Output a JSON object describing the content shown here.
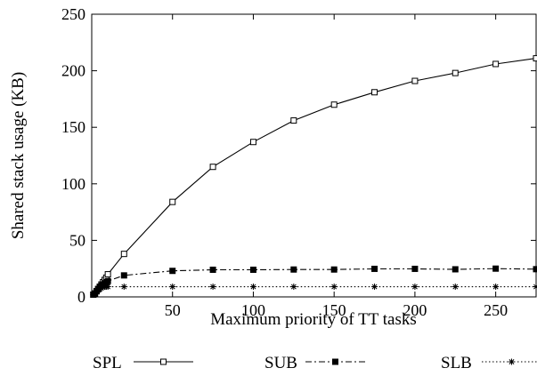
{
  "chart_data": {
    "type": "line",
    "title": "",
    "xlabel": "Maximum priority of TT tasks",
    "ylabel": "Shared stack usage (KB)",
    "xlim": [
      0,
      275
    ],
    "ylim": [
      0,
      250
    ],
    "x_ticks": [
      50,
      100,
      150,
      200,
      250
    ],
    "x_tick_labels": [
      "50",
      "100",
      "150",
      "200",
      "250"
    ],
    "y_ticks": [
      0,
      50,
      100,
      150,
      200,
      250
    ],
    "y_tick_labels": [
      "0",
      "50",
      "100",
      "150",
      "200",
      "250"
    ],
    "grid": false,
    "legend_position": "bottom",
    "series": [
      {
        "name": "SPL",
        "marker": "open-square",
        "line_style": "solid",
        "x": [
          1,
          2,
          3,
          4,
          5,
          6,
          7,
          8,
          9,
          10,
          20,
          50,
          75,
          100,
          125,
          150,
          175,
          200,
          225,
          250,
          275
        ],
        "y": [
          2,
          3,
          5,
          7,
          9,
          11,
          13,
          15,
          17,
          20,
          38,
          84,
          115,
          137,
          156,
          170,
          181,
          191,
          198,
          206,
          211
        ]
      },
      {
        "name": "SUB",
        "marker": "filled-square",
        "line_style": "dash-dot",
        "x": [
          1,
          2,
          3,
          4,
          5,
          6,
          7,
          8,
          9,
          10,
          20,
          50,
          75,
          100,
          125,
          150,
          175,
          200,
          225,
          250,
          275
        ],
        "y": [
          2,
          3,
          5,
          7,
          9,
          10,
          11,
          12,
          13,
          14,
          19,
          23,
          24,
          24,
          24.2,
          24.2,
          24.8,
          24.8,
          24.4,
          25,
          24.5
        ]
      },
      {
        "name": "SLB",
        "marker": "star",
        "line_style": "dotted",
        "x": [
          1,
          2,
          3,
          4,
          5,
          6,
          7,
          8,
          9,
          10,
          20,
          50,
          75,
          100,
          125,
          150,
          175,
          200,
          225,
          250,
          275
        ],
        "y": [
          2,
          3,
          4.5,
          6,
          7,
          8,
          8.5,
          9,
          9,
          9,
          9,
          9,
          9,
          9,
          9,
          9,
          9,
          9,
          9,
          9,
          9
        ]
      }
    ]
  }
}
